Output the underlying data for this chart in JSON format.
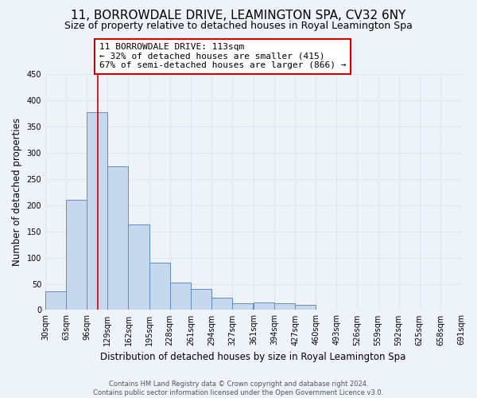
{
  "title": "11, BORROWDALE DRIVE, LEAMINGTON SPA, CV32 6NY",
  "subtitle": "Size of property relative to detached houses in Royal Leamington Spa",
  "xlabel": "Distribution of detached houses by size in Royal Leamington Spa",
  "ylabel": "Number of detached properties",
  "footer_line1": "Contains HM Land Registry data © Crown copyright and database right 2024.",
  "footer_line2": "Contains public sector information licensed under the Open Government Licence v3.0.",
  "annotation_line1": "11 BORROWDALE DRIVE: 113sqm",
  "annotation_line2": "← 32% of detached houses are smaller (415)",
  "annotation_line3": "67% of semi-detached houses are larger (866) →",
  "bar_values": [
    35,
    210,
    378,
    275,
    163,
    90,
    53,
    40,
    24,
    13,
    14,
    13,
    10,
    0,
    0,
    0,
    0,
    1,
    0,
    0
  ],
  "bin_edges": [
    30,
    63,
    96,
    129,
    162,
    195,
    228,
    261,
    294,
    327,
    361,
    394,
    427,
    460,
    493,
    526,
    559,
    592,
    625,
    658,
    691
  ],
  "tick_labels": [
    "30sqm",
    "63sqm",
    "96sqm",
    "129sqm",
    "162sqm",
    "195sqm",
    "228sqm",
    "261sqm",
    "294sqm",
    "327sqm",
    "361sqm",
    "394sqm",
    "427sqm",
    "460sqm",
    "493sqm",
    "526sqm",
    "559sqm",
    "592sqm",
    "625sqm",
    "658sqm",
    "691sqm"
  ],
  "ylim": [
    0,
    450
  ],
  "yticks": [
    0,
    50,
    100,
    150,
    200,
    250,
    300,
    350,
    400,
    450
  ],
  "bar_color": "#c5d8ed",
  "bar_edge_color": "#5b8ec7",
  "property_line_x": 113,
  "property_line_color": "#cc0000",
  "annotation_box_edge_color": "#cc0000",
  "grid_color": "#dde5f0",
  "background_color": "#eef2f9",
  "title_fontsize": 11,
  "subtitle_fontsize": 9,
  "axis_label_fontsize": 8.5,
  "tick_fontsize": 7,
  "annotation_fontsize": 8,
  "footer_fontsize": 6
}
